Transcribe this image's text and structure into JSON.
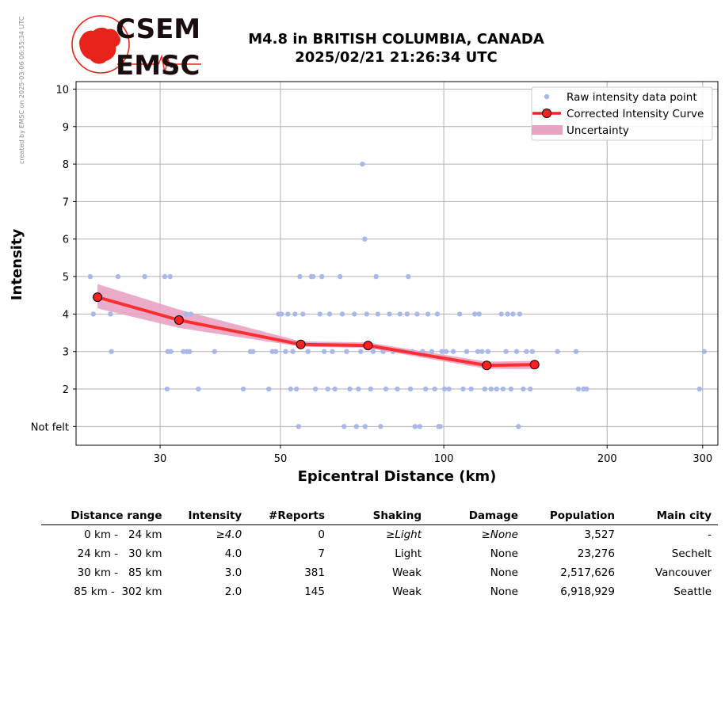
{
  "watermark": "created by EMSC on 2025-03-06 06:55:34 UTC",
  "logo": {
    "line1": "CSEM",
    "line2": "EMSC"
  },
  "title": {
    "line1": "M4.8 in BRITISH COLUMBIA, CANADA",
    "line2": "2025/02/21 21:26:34 UTC"
  },
  "colors": {
    "raw": "#aab8e8",
    "curve": "#ff2020",
    "uncertainty": "#e8a3c3",
    "logo_red": "#e8231c",
    "grid": "#b0b0b0"
  },
  "chart_data": {
    "type": "scatter",
    "xscale": "log",
    "xlabel": "Epicentral Distance (km)",
    "ylabel": "Intensity",
    "xlim": [
      21,
      320
    ],
    "ylim": [
      0.5,
      10.2
    ],
    "x_ticks": [
      30,
      50,
      100,
      200,
      300
    ],
    "y_ticks": [
      {
        "value": 1,
        "label": "Not felt"
      },
      {
        "value": 2,
        "label": "2"
      },
      {
        "value": 3,
        "label": "3"
      },
      {
        "value": 4,
        "label": "4"
      },
      {
        "value": 5,
        "label": "5"
      },
      {
        "value": 6,
        "label": "6"
      },
      {
        "value": 7,
        "label": "7"
      },
      {
        "value": 8,
        "label": "8"
      },
      {
        "value": 9,
        "label": "9"
      },
      {
        "value": 10,
        "label": "10"
      }
    ],
    "grid": true,
    "legend_position": "top-right",
    "legend": [
      "Raw intensity data point",
      "Corrected Intensity Curve",
      "Uncertainty"
    ],
    "raw_points": [
      [
        22.3,
        5
      ],
      [
        22.6,
        4
      ],
      [
        24.3,
        4
      ],
      [
        24.4,
        3
      ],
      [
        25.1,
        5
      ],
      [
        28.1,
        5
      ],
      [
        30.6,
        5
      ],
      [
        31.3,
        5
      ],
      [
        30.9,
        2
      ],
      [
        31.0,
        3
      ],
      [
        31.4,
        3
      ],
      [
        33.1,
        3
      ],
      [
        33.6,
        3
      ],
      [
        34.0,
        3
      ],
      [
        33.5,
        4
      ],
      [
        34.2,
        4
      ],
      [
        35.3,
        2
      ],
      [
        37.8,
        3
      ],
      [
        42.7,
        2
      ],
      [
        44.0,
        3
      ],
      [
        44.5,
        3
      ],
      [
        47.6,
        2
      ],
      [
        48.3,
        3
      ],
      [
        49.0,
        3
      ],
      [
        49.6,
        4
      ],
      [
        50.2,
        4
      ],
      [
        51.1,
        3
      ],
      [
        51.6,
        4
      ],
      [
        52.2,
        2
      ],
      [
        52.7,
        3
      ],
      [
        53.2,
        4
      ],
      [
        53.5,
        2
      ],
      [
        54.0,
        1
      ],
      [
        54.3,
        5
      ],
      [
        55.0,
        4
      ],
      [
        56.2,
        3
      ],
      [
        57.0,
        5
      ],
      [
        57.4,
        5
      ],
      [
        58.0,
        2
      ],
      [
        59.1,
        4
      ],
      [
        59.6,
        5
      ],
      [
        60.2,
        3
      ],
      [
        61.1,
        2
      ],
      [
        61.6,
        4
      ],
      [
        62.3,
        3
      ],
      [
        63.0,
        2
      ],
      [
        64.4,
        5
      ],
      [
        65.0,
        4
      ],
      [
        65.5,
        1
      ],
      [
        66.2,
        3
      ],
      [
        67.1,
        2
      ],
      [
        68.4,
        4
      ],
      [
        69.0,
        1
      ],
      [
        69.6,
        2
      ],
      [
        70.3,
        3
      ],
      [
        70.8,
        8
      ],
      [
        71.5,
        6
      ],
      [
        71.6,
        1
      ],
      [
        72.1,
        4
      ],
      [
        73.3,
        2
      ],
      [
        74.1,
        3
      ],
      [
        75.0,
        5
      ],
      [
        75.6,
        4
      ],
      [
        76.5,
        1
      ],
      [
        77.3,
        3
      ],
      [
        78.2,
        2
      ],
      [
        79.4,
        4
      ],
      [
        80.6,
        3
      ],
      [
        82.1,
        2
      ],
      [
        83.0,
        4
      ],
      [
        84.2,
        3
      ],
      [
        85.6,
        4
      ],
      [
        86.0,
        5
      ],
      [
        86.8,
        2
      ],
      [
        87.5,
        3
      ],
      [
        88.5,
        1
      ],
      [
        89.3,
        4
      ],
      [
        90.3,
        1
      ],
      [
        91.4,
        3
      ],
      [
        92.6,
        2
      ],
      [
        93.5,
        4
      ],
      [
        95.0,
        3
      ],
      [
        96.2,
        2
      ],
      [
        97.3,
        4
      ],
      [
        97.8,
        1
      ],
      [
        98.5,
        1
      ],
      [
        99.2,
        3
      ],
      [
        100.3,
        2
      ],
      [
        101.0,
        3
      ],
      [
        102.2,
        2
      ],
      [
        104.1,
        3
      ],
      [
        107.0,
        4
      ],
      [
        108.5,
        2
      ],
      [
        110.2,
        3
      ],
      [
        112.3,
        2
      ],
      [
        114.0,
        4
      ],
      [
        115.5,
        3
      ],
      [
        116.2,
        4
      ],
      [
        117.6,
        3
      ],
      [
        119.0,
        2
      ],
      [
        120.6,
        3
      ],
      [
        122.2,
        2
      ],
      [
        125.1,
        2
      ],
      [
        127.6,
        4
      ],
      [
        128.6,
        2
      ],
      [
        130.2,
        3
      ],
      [
        131.1,
        4
      ],
      [
        133.0,
        2
      ],
      [
        134.1,
        4
      ],
      [
        136.2,
        3
      ],
      [
        137.3,
        1
      ],
      [
        138.0,
        4
      ],
      [
        140.1,
        2
      ],
      [
        142.0,
        3
      ],
      [
        144.3,
        2
      ],
      [
        145.6,
        3
      ],
      [
        162.0,
        3
      ],
      [
        175.3,
        3
      ],
      [
        177.0,
        2
      ],
      [
        181.0,
        2
      ],
      [
        183.3,
        2
      ],
      [
        296.0,
        2
      ],
      [
        302.0,
        3
      ]
    ],
    "curve": {
      "name": "Corrected Intensity Curve",
      "x": [
        23.0,
        32.5,
        54.5,
        72.5,
        120.0,
        147.0
      ],
      "y": [
        4.45,
        3.84,
        3.19,
        3.16,
        2.63,
        2.65
      ],
      "lower": [
        4.15,
        3.63,
        3.13,
        3.09,
        2.54,
        2.53
      ],
      "upper": [
        4.8,
        4.12,
        3.27,
        3.24,
        2.73,
        2.75
      ]
    }
  },
  "table": {
    "headers": [
      "Distance range",
      "Intensity",
      "#Reports",
      "Shaking",
      "Damage",
      "Population",
      "Main city"
    ],
    "rows": [
      [
        "0 km -   24 km",
        "≥4.0",
        "0",
        "≥Light",
        "≥None",
        "3,527",
        "-"
      ],
      [
        "24 km -   30 km",
        "4.0",
        "7",
        "Light",
        "None",
        "23,276",
        "Sechelt"
      ],
      [
        "30 km -   85 km",
        "3.0",
        "381",
        "Weak",
        "None",
        "2,517,626",
        "Vancouver"
      ],
      [
        "85 km -  302 km",
        "2.0",
        "145",
        "Weak",
        "None",
        "6,918,929",
        "Seattle"
      ]
    ]
  }
}
